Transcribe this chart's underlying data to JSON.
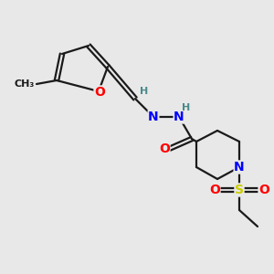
{
  "bg_color": "#e8e8e8",
  "bond_color": "#1a1a1a",
  "bond_width": 1.6,
  "atom_colors": {
    "O": "#ff0000",
    "N": "#0000ff",
    "S": "#cccc00",
    "H": "#4a8a8a",
    "C": "#1a1a1a"
  },
  "font_size_atom": 10,
  "font_size_h": 8,
  "font_size_methyl": 8,
  "figsize": [
    3.0,
    3.0
  ],
  "dpi": 100
}
